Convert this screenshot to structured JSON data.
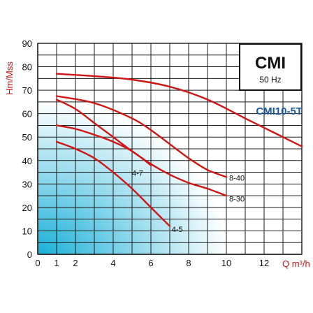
{
  "chart_data": {
    "type": "line",
    "title": "CMI",
    "subtitle": "50 Hz",
    "model_label": "CMI10-5T",
    "xlabel": "Q m³/h",
    "ylabel": "Hm/Mss",
    "xlim": [
      0,
      14
    ],
    "ylim": [
      0,
      90
    ],
    "x_ticks": [
      "0",
      "1",
      "2",
      "4",
      "6",
      "8",
      "10",
      "12"
    ],
    "x_tick_values": [
      0,
      1,
      2,
      4,
      6,
      8,
      10,
      12
    ],
    "y_ticks": [
      "0",
      "10",
      "20",
      "30",
      "40",
      "50",
      "60",
      "70",
      "80",
      "90"
    ],
    "y_tick_values": [
      0,
      10,
      20,
      30,
      40,
      50,
      60,
      70,
      80,
      90
    ],
    "grid": true,
    "series": [
      {
        "name": "",
        "x": [
          1,
          3,
          5,
          7,
          9,
          11,
          12.5,
          14
        ],
        "y": [
          77,
          76,
          74.5,
          71.5,
          66,
          58,
          52,
          46
        ]
      },
      {
        "name": "8-40",
        "x": [
          1,
          3,
          5,
          6,
          7,
          8,
          9,
          10
        ],
        "y": [
          67.5,
          64.5,
          58,
          53,
          47,
          41,
          36,
          33
        ]
      },
      {
        "name": "8-30",
        "x": [
          1,
          2,
          3,
          4,
          5,
          6,
          7,
          8,
          9,
          10
        ],
        "y": [
          66,
          62,
          56,
          50,
          44,
          38.5,
          34,
          30.5,
          28,
          25
        ]
      },
      {
        "name": "4-7",
        "x": [
          1,
          2,
          3,
          4,
          5,
          6
        ],
        "y": [
          55,
          53.5,
          51,
          48,
          44,
          38
        ]
      },
      {
        "name": "4-5",
        "x": [
          1,
          2,
          3,
          4,
          5,
          6,
          7
        ],
        "y": [
          48,
          45,
          41,
          35,
          28,
          20,
          12
        ]
      }
    ]
  },
  "colors": {
    "curve": "#d01515",
    "grid": "#1a1a1a",
    "axis_title": "#d01010",
    "model_label": "#1b5aa0",
    "gradient_deep": "#1ab0d8",
    "gradient_light": "#ffffff"
  }
}
